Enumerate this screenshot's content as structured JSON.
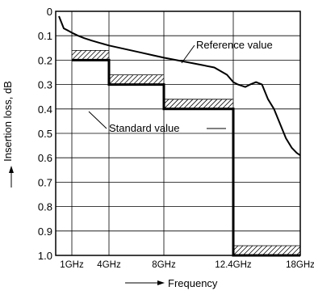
{
  "chart_data": {
    "type": "line",
    "title": "",
    "xlabel": "Frequency",
    "ylabel": "Insertion loss, dB",
    "y_inverted": true,
    "grid": true,
    "ylim": [
      0,
      1.0
    ],
    "yticks": [
      "0",
      "0.1",
      "0.2",
      "0.3",
      "0.4",
      "0.5",
      "0.6",
      "0.7",
      "0.8",
      "0.9",
      "1.0"
    ],
    "xticks": [
      {
        "label": "1GHz",
        "value": 1
      },
      {
        "label": "4GHz",
        "value": 4
      },
      {
        "label": "8GHz",
        "value": 8
      },
      {
        "label": "12.4GHz",
        "value": 12.4
      },
      {
        "label": "18GHz",
        "value": 18
      }
    ],
    "annotations": {
      "reference": "Reference value",
      "standard": "Standard value"
    },
    "series": [
      {
        "name": "Reference value",
        "style": "measured",
        "points": [
          [
            0.2,
            0.02
          ],
          [
            0.5,
            0.07
          ],
          [
            0.8,
            0.08
          ],
          [
            1.1,
            0.09
          ],
          [
            1.5,
            0.1
          ],
          [
            2.0,
            0.11
          ],
          [
            2.6,
            0.12
          ],
          [
            3.3,
            0.13
          ],
          [
            4.0,
            0.14
          ],
          [
            4.8,
            0.15
          ],
          [
            5.6,
            0.16
          ],
          [
            6.4,
            0.17
          ],
          [
            7.2,
            0.18
          ],
          [
            8.0,
            0.19
          ],
          [
            8.8,
            0.2
          ],
          [
            9.6,
            0.21
          ],
          [
            10.4,
            0.22
          ],
          [
            11.2,
            0.23
          ],
          [
            12.0,
            0.26
          ],
          [
            12.4,
            0.29
          ],
          [
            12.8,
            0.3
          ],
          [
            13.4,
            0.31
          ],
          [
            13.8,
            0.3
          ],
          [
            14.3,
            0.29
          ],
          [
            14.8,
            0.3
          ],
          [
            15.3,
            0.36
          ],
          [
            15.8,
            0.4
          ],
          [
            16.3,
            0.46
          ],
          [
            16.8,
            0.52
          ],
          [
            17.3,
            0.56
          ],
          [
            17.7,
            0.58
          ],
          [
            18.0,
            0.59
          ]
        ]
      },
      {
        "name": "Standard value",
        "style": "limit",
        "points": [
          [
            1,
            0.2
          ],
          [
            4,
            0.2
          ],
          [
            4,
            0.3
          ],
          [
            8,
            0.3
          ],
          [
            8,
            0.4
          ],
          [
            12.4,
            0.4
          ],
          [
            12.4,
            1.0
          ],
          [
            18,
            1.0
          ]
        ]
      }
    ]
  }
}
